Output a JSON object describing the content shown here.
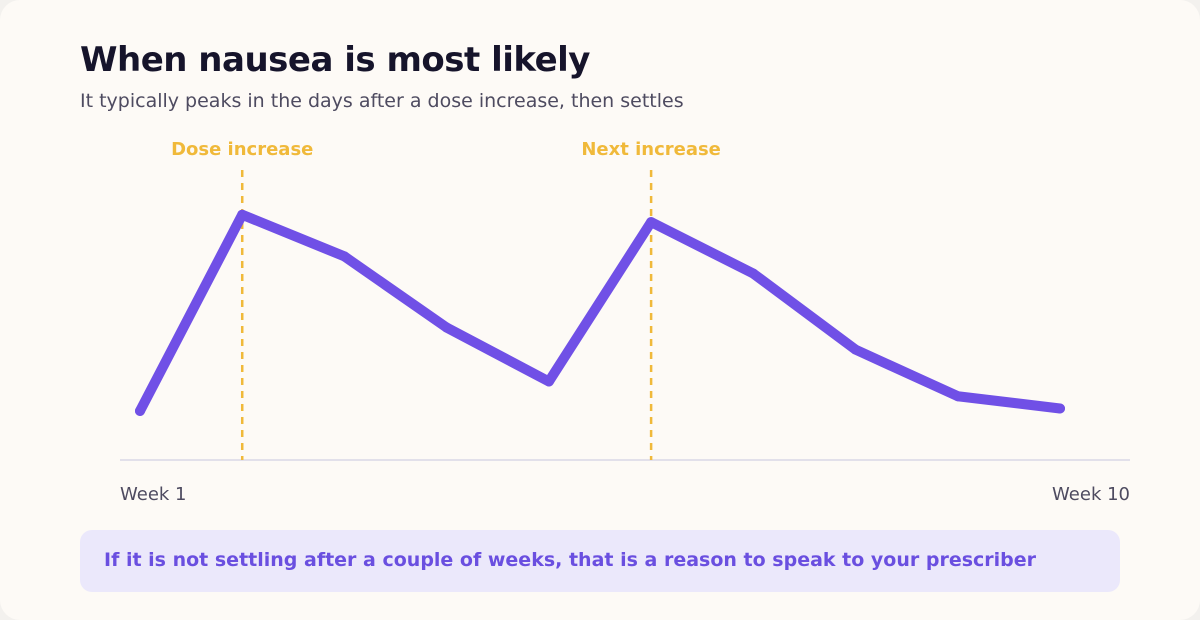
{
  "header": {
    "title": "When nausea is most likely",
    "subtitle": "It typically peaks in the days after a dose increase, then settles"
  },
  "chart_data": {
    "type": "line",
    "x": [
      1,
      2,
      3,
      4,
      5,
      6,
      7,
      8,
      9,
      10
    ],
    "x_tick_labels": [
      {
        "x": 1,
        "label": "Week 1"
      },
      {
        "x": 10,
        "label": "Week 10"
      }
    ],
    "series": [
      {
        "values": [
          20,
          100,
          83,
          54,
          32,
          97,
          76,
          45,
          26,
          21
        ]
      }
    ],
    "ylim": [
      0,
      106
    ],
    "annotations": [
      {
        "x": 2,
        "label": "Dose increase"
      },
      {
        "x": 6,
        "label": "Next increase"
      }
    ],
    "grid": false,
    "line_color": "#7050e6",
    "annotation_color": "#f0b93a",
    "axis_color": "#e2e0ea"
  },
  "callout": {
    "text": "If it is not settling after a couple of weeks, that is a reason to speak to your prescriber"
  }
}
